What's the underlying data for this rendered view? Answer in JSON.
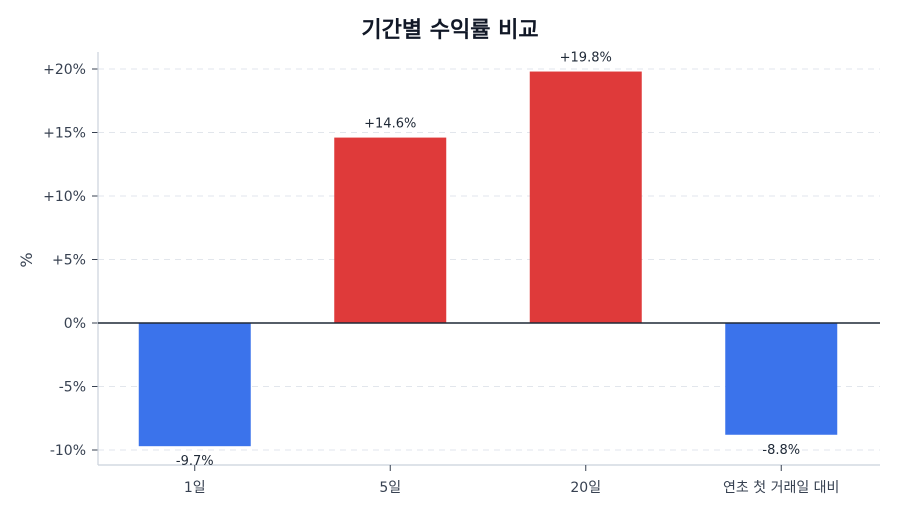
{
  "chart_data": {
    "type": "bar",
    "title": "기간별 수익률 비교",
    "xlabel": "",
    "ylabel": "%",
    "categories": [
      "1일",
      "5일",
      "20일",
      "연초 첫 거래일 대비"
    ],
    "values": [
      -9.7,
      14.6,
      19.8,
      -8.8
    ],
    "value_labels": [
      "-9.7%",
      "+14.6%",
      "+19.8%",
      "-8.8%"
    ],
    "colors": [
      "#3b73eb",
      "#df3a3a",
      "#df3a3a",
      "#3b73eb"
    ],
    "positive_color": "#df3a3a",
    "negative_color": "#3b73eb",
    "yticks": [
      20,
      15,
      10,
      5,
      0,
      -5,
      -10
    ],
    "ytick_labels": [
      "+20%",
      "+15%",
      "+10%",
      "+5%",
      "0%",
      "-5%",
      "-10%"
    ],
    "ylim": [
      -11.2,
      21.3
    ],
    "grid": true,
    "grid_style": "dashed-horizontal",
    "zero_line": true,
    "legend": null
  }
}
